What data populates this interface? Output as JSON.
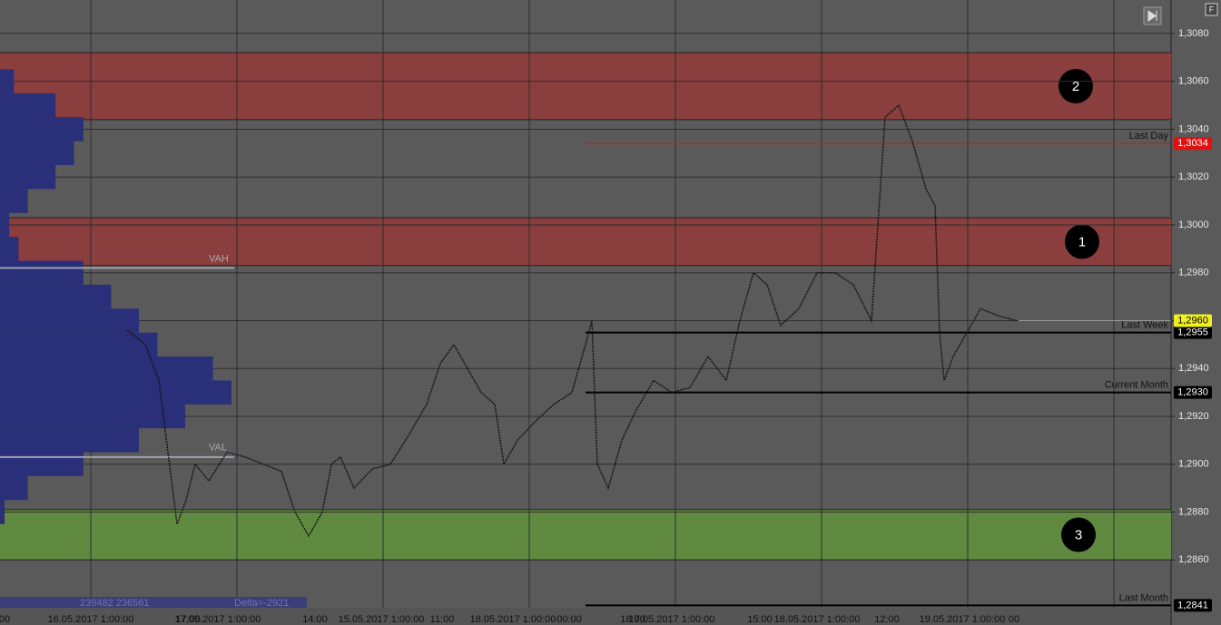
{
  "chart_data": {
    "type": "line",
    "ylim": [
      1.284,
      1.3094
    ],
    "yticks": [
      {
        "value": 1.286,
        "label": "1,2860"
      },
      {
        "value": 1.288,
        "label": "1,2880"
      },
      {
        "value": 1.29,
        "label": "1,2900"
      },
      {
        "value": 1.292,
        "label": "1,2920"
      },
      {
        "value": 1.294,
        "label": "1,2940"
      },
      {
        "value": 1.296,
        "label": "1,2960"
      },
      {
        "value": 1.298,
        "label": "1,2980"
      },
      {
        "value": 1.3,
        "label": "1,3000"
      },
      {
        "value": 1.302,
        "label": "1,3020"
      },
      {
        "value": 1.304,
        "label": "1,3040"
      },
      {
        "value": 1.306,
        "label": "1,3060"
      },
      {
        "value": 1.308,
        "label": "1,3080"
      }
    ],
    "grid": true,
    "color": "#151515",
    "values": [
      1.2956,
      1.295,
      1.2935,
      1.2905,
      1.2875,
      1.2885,
      1.29,
      1.2893,
      1.2905,
      1.2903,
      1.29,
      1.2897,
      1.288,
      1.287,
      1.288,
      1.29,
      1.2903,
      1.289,
      1.2898,
      1.29,
      1.2912,
      1.2925,
      1.2942,
      1.295,
      1.294,
      1.293,
      1.2925,
      1.29,
      1.291,
      1.2918,
      1.2925,
      1.293,
      1.295,
      1.296,
      1.29,
      1.289,
      1.291,
      1.2922,
      1.2935,
      1.293,
      1.2932,
      1.2945,
      1.2935,
      1.296,
      1.298,
      1.2975,
      1.2958,
      1.2965,
      1.298,
      1.298,
      1.2975,
      1.296,
      1.3045,
      1.305,
      1.3035,
      1.3015,
      1.3008,
      1.2955,
      1.2935,
      1.2945,
      1.2955,
      1.2965,
      1.2962,
      1.296
    ],
    "xticks": [
      "00",
      "16.05.2017 1:00:00",
      "17:00",
      "17.05.2017 1:00:00",
      "14:00",
      "15.05.2017 1:00:00",
      "11:00",
      "18.05.2017 1:00:00",
      "00:00",
      "18:00",
      "17.05.2017 1:00:00",
      "15:00",
      "18.05.2017 1:00:00",
      "12:00",
      "19.05.2017 1:00:00",
      "00"
    ],
    "zones": [
      {
        "label": "2",
        "from": 1.3044,
        "to": 1.3072,
        "color": "#8a3e3e"
      },
      {
        "label": "1",
        "from": 1.2983,
        "to": 1.3003,
        "color": "#8a3e3e"
      },
      {
        "label": "3",
        "from": 1.286,
        "to": 1.2881,
        "color": "#5f8a3f"
      }
    ],
    "levels": [
      {
        "label": "Last Day",
        "value": 1.3034,
        "value_label": "1,3034",
        "color": "#e01010"
      },
      {
        "label": "Last Week",
        "value": 1.2955,
        "value_label": "1,2955",
        "color": "#000000"
      },
      {
        "label": "Current Month",
        "value": 1.293,
        "value_label": "1,2930",
        "color": "#000000"
      },
      {
        "label": "Last Month",
        "value": 1.2841,
        "value_label": "1,2841",
        "color": "#000000"
      }
    ],
    "current_price": {
      "value": 1.296,
      "value_label": "1,2960",
      "color": "#f0f020"
    },
    "value_area": [
      {
        "label": "VAH",
        "value": 1.2982
      },
      {
        "label": "VAL",
        "value": 1.2903
      }
    ],
    "volume_profile": {
      "color": "#2a2f7a",
      "prices": [
        1.288,
        1.289,
        1.29,
        1.291,
        1.292,
        1.293,
        1.294,
        1.295,
        1.296,
        1.297,
        1.298,
        1.299,
        1.3,
        1.301,
        1.302,
        1.303,
        1.304,
        1.305,
        1.306
      ],
      "volumes": [
        5,
        30,
        90,
        150,
        200,
        250,
        230,
        170,
        150,
        120,
        90,
        20,
        10,
        30,
        60,
        80,
        90,
        60,
        15
      ]
    },
    "volume_text": "239482 236561",
    "delta_text": "Delta=-2921",
    "corner_button": "F"
  }
}
